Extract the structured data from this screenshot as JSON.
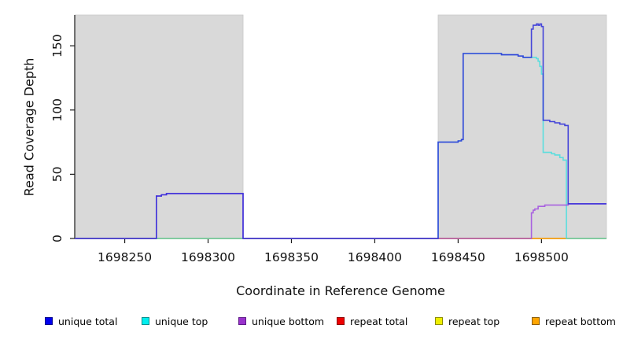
{
  "chart_data": {
    "type": "line",
    "title": "",
    "xlabel": "Coordinate in Reference Genome",
    "ylabel": "Read Coverage Depth",
    "xlim": [
      1698220,
      1698539
    ],
    "ylim": [
      0,
      174
    ],
    "xticks": [
      1698250,
      1698300,
      1698350,
      1698400,
      1698450,
      1698500
    ],
    "yticks": [
      0,
      50,
      100,
      150
    ],
    "grid": "off",
    "legend_position": "bottom",
    "background_color": "#ffffff",
    "shaded_regions": [
      {
        "start": 1698220,
        "end": 1698321,
        "color": "#d9d9d9"
      },
      {
        "start": 1698438,
        "end": 1698539,
        "color": "#d9d9d9"
      }
    ],
    "series": [
      {
        "name": "repeat total",
        "color": "#e04444",
        "points": [
          [
            1698220,
            0
          ],
          [
            1698539,
            0
          ]
        ]
      },
      {
        "name": "repeat top",
        "color": "#e6e600",
        "points": [
          [
            1698220,
            0
          ],
          [
            1698539,
            0
          ]
        ]
      },
      {
        "name": "repeat bottom",
        "color": "#ff9d1e",
        "points": [
          [
            1698220,
            0
          ],
          [
            1698539,
            0
          ]
        ]
      },
      {
        "name": "unique top",
        "color": "#45dede",
        "points": [
          [
            1698220,
            0
          ],
          [
            1698438,
            75
          ],
          [
            1698450,
            76
          ],
          [
            1698452,
            77
          ],
          [
            1698453,
            144
          ],
          [
            1698475,
            144
          ],
          [
            1698476,
            143
          ],
          [
            1698486,
            142
          ],
          [
            1698489,
            141
          ],
          [
            1698497,
            140
          ],
          [
            1698498,
            138
          ],
          [
            1698499,
            134
          ],
          [
            1698500,
            128
          ],
          [
            1698501,
            67
          ],
          [
            1698506,
            66
          ],
          [
            1698508,
            65
          ],
          [
            1698511,
            63
          ],
          [
            1698513,
            61
          ],
          [
            1698515,
            0
          ],
          [
            1698539,
            0
          ]
        ]
      },
      {
        "name": "unique bottom",
        "color": "#a04ce0",
        "points": [
          [
            1698220,
            0
          ],
          [
            1698269,
            33
          ],
          [
            1698272,
            34
          ],
          [
            1698275,
            35
          ],
          [
            1698321,
            0
          ],
          [
            1698494,
            20
          ],
          [
            1698495,
            22
          ],
          [
            1698496,
            23
          ],
          [
            1698498,
            25
          ],
          [
            1698502,
            26
          ],
          [
            1698512,
            26
          ],
          [
            1698516,
            27
          ],
          [
            1698539,
            27
          ]
        ]
      },
      {
        "name": "unique total",
        "color": "#2a2ad8",
        "points": [
          [
            1698220,
            0
          ],
          [
            1698269,
            33
          ],
          [
            1698272,
            34
          ],
          [
            1698275,
            35
          ],
          [
            1698321,
            0
          ],
          [
            1698438,
            75
          ],
          [
            1698450,
            76
          ],
          [
            1698452,
            77
          ],
          [
            1698453,
            144
          ],
          [
            1698475,
            144
          ],
          [
            1698476,
            143
          ],
          [
            1698486,
            142
          ],
          [
            1698489,
            141
          ],
          [
            1698493,
            141
          ],
          [
            1698494,
            163
          ],
          [
            1698495,
            166
          ],
          [
            1698497,
            167
          ],
          [
            1698498,
            166
          ],
          [
            1698499,
            167
          ],
          [
            1698500,
            165
          ],
          [
            1698501,
            92
          ],
          [
            1698505,
            91
          ],
          [
            1698508,
            90
          ],
          [
            1698511,
            89
          ],
          [
            1698514,
            88
          ],
          [
            1698516,
            27
          ],
          [
            1698539,
            27
          ]
        ]
      }
    ]
  },
  "legend": {
    "items": [
      {
        "label": "unique total",
        "color": "#0000EE",
        "border": "#00008B"
      },
      {
        "label": "unique top",
        "color": "#00EEEE",
        "border": "#008B8B"
      },
      {
        "label": "unique bottom",
        "color": "#9932CC",
        "border": "#5E1C87"
      },
      {
        "label": "repeat total",
        "color": "#EE0000",
        "border": "#8B0000"
      },
      {
        "label": "repeat top",
        "color": "#EEEE00",
        "border": "#8B8B00"
      },
      {
        "label": "repeat bottom",
        "color": "#FFA500",
        "border": "#8B5A00"
      }
    ]
  }
}
